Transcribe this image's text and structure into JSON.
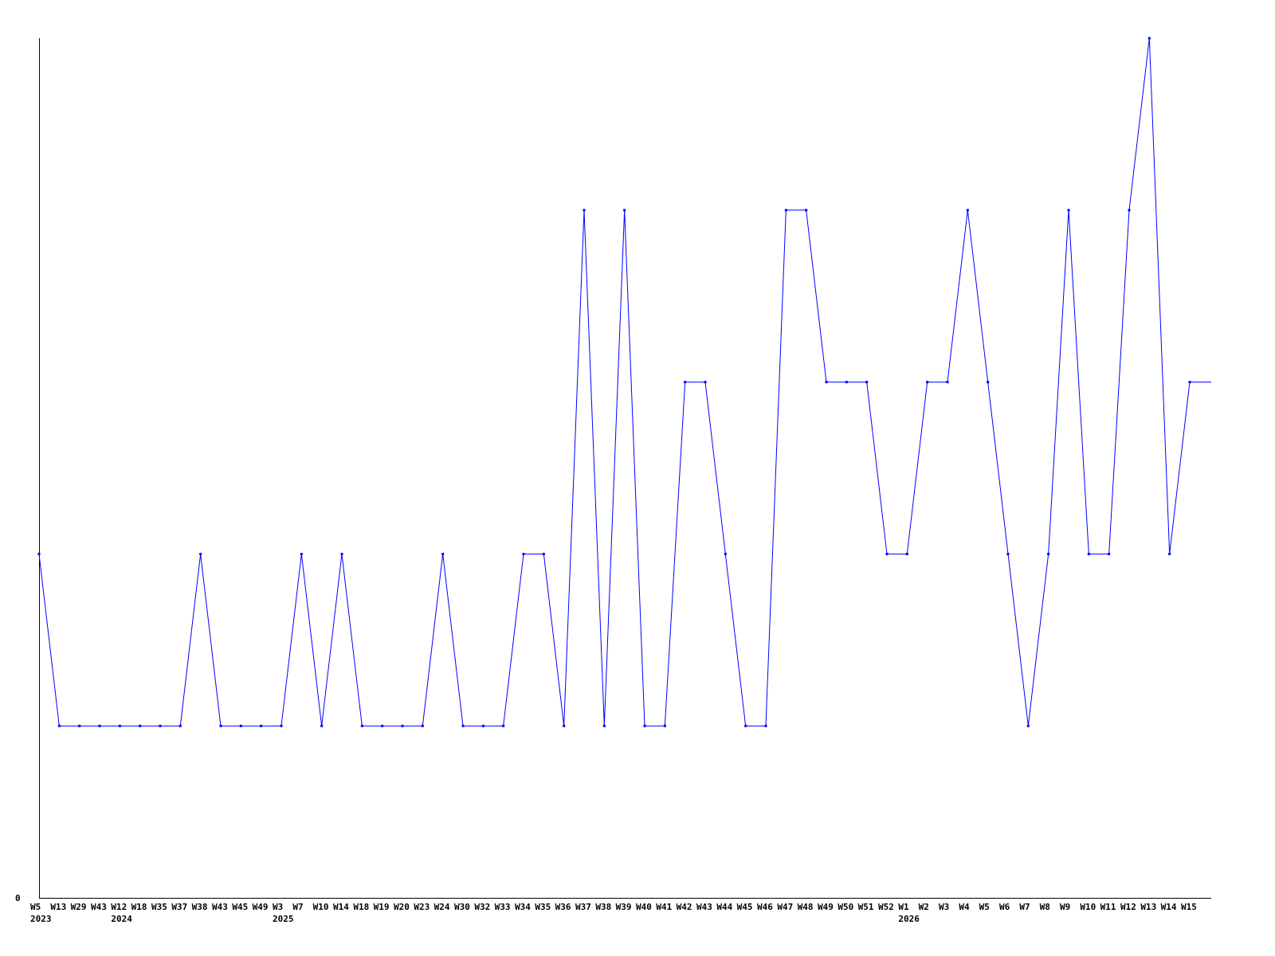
{
  "chart_data": {
    "type": "line",
    "title": "",
    "xlabel": "",
    "ylabel": "",
    "ylim": [
      0,
      5
    ],
    "y_tick_labels": [
      "0"
    ],
    "grid": false,
    "line_color": "#0000ff",
    "categories": [
      "W5",
      "W13",
      "W29",
      "W43",
      "W12",
      "W18",
      "W35",
      "W37",
      "W38",
      "W43",
      "W45",
      "W49",
      "W3",
      "W7",
      "W10",
      "W14",
      "W18",
      "W19",
      "W20",
      "W23",
      "W24",
      "W30",
      "W32",
      "W33",
      "W34",
      "W35",
      "W36",
      "W37",
      "W38",
      "W39",
      "W40",
      "W41",
      "W42",
      "W43",
      "W44",
      "W45",
      "W46",
      "W47",
      "W48",
      "W49",
      "W50",
      "W51",
      "W52",
      "W1",
      "W2",
      "W3",
      "W4",
      "W5",
      "W6",
      "W7",
      "W8",
      "W9",
      "W10",
      "W11",
      "W12",
      "W13",
      "W14",
      "W15"
    ],
    "year_labels": [
      {
        "label": "2023",
        "category_index": 0
      },
      {
        "label": "2024",
        "category_index": 4
      },
      {
        "label": "2025",
        "category_index": 12
      },
      {
        "label": "2026",
        "category_index": 43
      }
    ],
    "values": [
      2,
      1,
      1,
      1,
      1,
      1,
      1,
      1,
      2,
      1,
      1,
      1,
      1,
      2,
      1,
      2,
      1,
      1,
      1,
      1,
      2,
      1,
      1,
      1,
      2,
      2,
      1,
      4,
      1,
      4,
      1,
      1,
      3,
      3,
      2,
      1,
      1,
      4,
      4,
      3,
      3,
      3,
      2,
      2,
      3,
      3,
      4,
      3,
      2,
      1,
      2,
      4,
      2,
      2,
      4,
      5,
      2,
      3
    ]
  }
}
